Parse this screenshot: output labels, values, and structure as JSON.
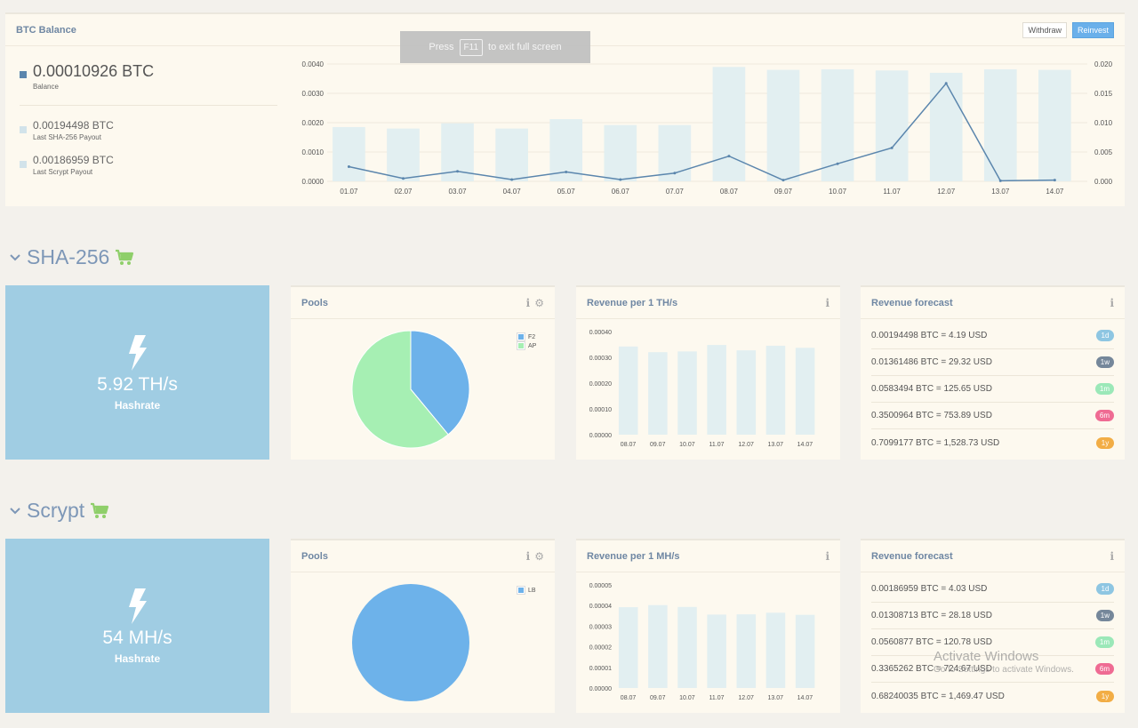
{
  "balance": {
    "title": "BTC Balance",
    "withdraw_label": "Withdraw",
    "reinvest_label": "Reinvest",
    "main_value": "0.00010926 BTC",
    "main_label": "Balance",
    "sha_payout_value": "0.00194498 BTC",
    "sha_payout_label": "Last SHA-256 Payout",
    "scrypt_payout_value": "0.00186959 BTC",
    "scrypt_payout_label": "Last Scrypt Payout",
    "colors": {
      "balance": "#5b86ad",
      "payout": "#d2e3ea"
    }
  },
  "fullscreen_toast": {
    "press": "Press",
    "key": "F11",
    "rest": "to exit full screen"
  },
  "sections": {
    "sha": {
      "title": "SHA-256",
      "hashrate_value": "5.92 TH/s",
      "hashrate_label": "Hashrate"
    },
    "scrypt": {
      "title": "Scrypt",
      "hashrate_value": "54 MH/s",
      "hashrate_label": "Hashrate"
    }
  },
  "cards": {
    "pools_title": "Pools",
    "sha_revenue_title": "Revenue per 1 TH/s",
    "scrypt_revenue_title": "Revenue per 1 MH/s",
    "forecast_title": "Revenue forecast"
  },
  "forecast": {
    "sha": [
      {
        "text": "0.00194498 BTC = 4.19 USD",
        "badge": "1d",
        "color": "#8ec6e2"
      },
      {
        "text": "0.01361486 BTC = 29.32 USD",
        "badge": "1w",
        "color": "#75879a"
      },
      {
        "text": "0.0583494 BTC = 125.65 USD",
        "badge": "1m",
        "color": "#9be8b8"
      },
      {
        "text": "0.3500964 BTC = 753.89 USD",
        "badge": "6m",
        "color": "#ef6b93"
      },
      {
        "text": "0.7099177 BTC = 1,528.73 USD",
        "badge": "1y",
        "color": "#f2ad45"
      }
    ],
    "scrypt": [
      {
        "text": "0.00186959 BTC = 4.03 USD",
        "badge": "1d",
        "color": "#8ec6e2"
      },
      {
        "text": "0.01308713 BTC = 28.18 USD",
        "badge": "1w",
        "color": "#75879a"
      },
      {
        "text": "0.0560877 BTC = 120.78 USD",
        "badge": "1m",
        "color": "#9be8b8"
      },
      {
        "text": "0.3365262 BTC = 724.67 USD",
        "badge": "6m",
        "color": "#ef6b93"
      },
      {
        "text": "0.68240035 BTC = 1,469.47 USD",
        "badge": "1y",
        "color": "#f2ad45"
      }
    ]
  },
  "watermark": {
    "title": "Activate Windows",
    "subtitle": "Go to Settings to activate Windows."
  },
  "chart_data": [
    {
      "id": "btc-balance",
      "type": "bar",
      "categories": [
        "01.07",
        "02.07",
        "03.07",
        "04.07",
        "05.07",
        "06.07",
        "07.07",
        "08.07",
        "09.07",
        "10.07",
        "11.07",
        "12.07",
        "13.07",
        "14.07"
      ],
      "series": [
        {
          "type": "bar",
          "axis": "left",
          "color": "#e2eff1",
          "values": [
            0.00185,
            0.0018,
            0.00198,
            0.0018,
            0.00212,
            0.00192,
            0.00192,
            0.0039,
            0.0038,
            0.00382,
            0.00378,
            0.0037,
            0.00382,
            0.0038
          ]
        },
        {
          "type": "line",
          "axis": "right",
          "color": "#5b86ad",
          "values": [
            0.0025,
            0.0005,
            0.0017,
            0.0003,
            0.0016,
            0.0003,
            0.0014,
            0.0043,
            0.0002,
            0.003,
            0.0057,
            0.0167,
            0.0001,
            0.0002
          ]
        }
      ],
      "ylim_left": [
        0,
        0.004
      ],
      "yticks_left": [
        "0.0000",
        "0.0010",
        "0.0020",
        "0.0030",
        "0.0040"
      ],
      "ylim_right": [
        0,
        0.02
      ],
      "yticks_right": [
        "0.000",
        "0.005",
        "0.010",
        "0.015",
        "0.020"
      ]
    },
    {
      "id": "sha-pools",
      "type": "pie",
      "labels": [
        "F2",
        "AP"
      ],
      "values": [
        39,
        61
      ],
      "colors": [
        "#6db2ea",
        "#a6efb3"
      ]
    },
    {
      "id": "sha-revenue",
      "type": "bar",
      "categories": [
        "08.07",
        "09.07",
        "10.07",
        "11.07",
        "12.07",
        "13.07",
        "14.07"
      ],
      "values": [
        0.000342,
        0.00032,
        0.000323,
        0.000348,
        0.000327,
        0.000345,
        0.000337
      ],
      "ylim": [
        0,
        0.0004
      ],
      "yticks": [
        "0.00000",
        "0.00010",
        "0.00020",
        "0.00030",
        "0.00040"
      ],
      "color": "#e2eff1"
    },
    {
      "id": "scrypt-pools",
      "type": "pie",
      "labels": [
        "LB"
      ],
      "values": [
        100
      ],
      "colors": [
        "#6db2ea"
      ]
    },
    {
      "id": "scrypt-revenue",
      "type": "bar",
      "categories": [
        "08.07",
        "09.07",
        "10.07",
        "11.07",
        "12.07",
        "13.07",
        "14.07"
      ],
      "values": [
        3.92e-05,
        4.02e-05,
        3.93e-05,
        3.56e-05,
        3.57e-05,
        3.65e-05,
        3.55e-05
      ],
      "ylim": [
        0,
        5e-05
      ],
      "yticks": [
        "0.00000",
        "0.00001",
        "0.00002",
        "0.00003",
        "0.00004",
        "0.00005"
      ],
      "color": "#e2eff1"
    }
  ]
}
